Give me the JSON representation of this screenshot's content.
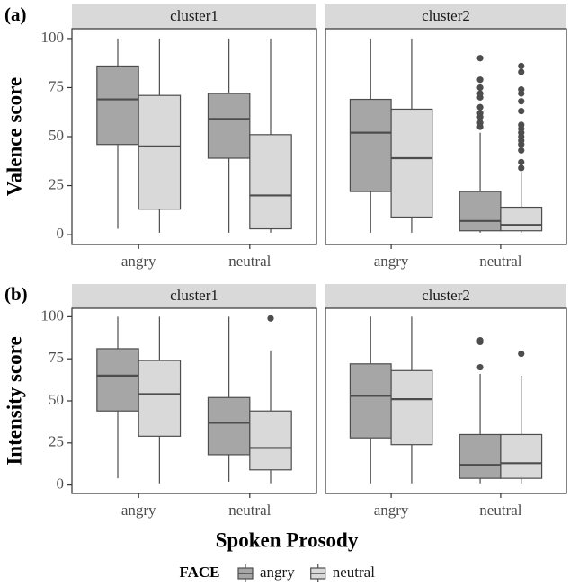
{
  "chart_data": [
    {
      "type": "box",
      "panel_label": "(a)",
      "y_label": "Valence score",
      "facet": "cluster1",
      "categories": [
        "angry",
        "neutral"
      ],
      "ylim": [
        -5,
        105
      ],
      "yticks": [
        0,
        25,
        50,
        75,
        100
      ],
      "series": [
        {
          "name": "angry",
          "color": "#a6a6a6",
          "values": [
            {
              "min": 3,
              "q1": 46,
              "median": 69,
              "q3": 86,
              "max": 100,
              "outliers": []
            },
            {
              "min": 1,
              "q1": 39,
              "median": 59,
              "q3": 72,
              "max": 100,
              "outliers": []
            }
          ]
        },
        {
          "name": "neutral",
          "color": "#d9d9d9",
          "values": [
            {
              "min": 1,
              "q1": 13,
              "median": 45,
              "q3": 71,
              "max": 100,
              "outliers": []
            },
            {
              "min": 1,
              "q1": 3,
              "median": 20,
              "q3": 51,
              "max": 100,
              "outliers": []
            }
          ]
        }
      ]
    },
    {
      "type": "box",
      "facet": "cluster2",
      "categories": [
        "angry",
        "neutral"
      ],
      "ylim": [
        -5,
        105
      ],
      "series": [
        {
          "color": "#a6a6a6",
          "values": [
            {
              "min": 1,
              "q1": 22,
              "median": 52,
              "q3": 69,
              "max": 100,
              "outliers": []
            },
            {
              "min": 1,
              "q1": 2,
              "median": 7,
              "q3": 22,
              "max": 52,
              "outliers": [
                55,
                57,
                60,
                62,
                65,
                70,
                72,
                75,
                79,
                90
              ]
            }
          ]
        },
        {
          "color": "#d9d9d9",
          "values": [
            {
              "min": 1,
              "q1": 9,
              "median": 39,
              "q3": 64,
              "max": 100,
              "outliers": []
            },
            {
              "min": 1,
              "q1": 2,
              "median": 5,
              "q3": 14,
              "max": 32,
              "outliers": [
                34,
                37,
                43,
                46,
                48,
                50,
                52,
                54,
                56,
                63,
                68,
                72,
                74,
                83,
                86
              ]
            }
          ]
        }
      ]
    },
    {
      "type": "box",
      "panel_label": "(b)",
      "y_label": "Intensity score",
      "facet": "cluster1",
      "categories": [
        "angry",
        "neutral"
      ],
      "ylim": [
        -5,
        105
      ],
      "yticks": [
        0,
        25,
        50,
        75,
        100
      ],
      "series": [
        {
          "color": "#a6a6a6",
          "values": [
            {
              "min": 4,
              "q1": 44,
              "median": 65,
              "q3": 81,
              "max": 100,
              "outliers": []
            },
            {
              "min": 2,
              "q1": 18,
              "median": 37,
              "q3": 52,
              "max": 100,
              "outliers": []
            }
          ]
        },
        {
          "color": "#d9d9d9",
          "values": [
            {
              "min": 1,
              "q1": 29,
              "median": 54,
              "q3": 74,
              "max": 100,
              "outliers": []
            },
            {
              "min": 1,
              "q1": 9,
              "median": 22,
              "q3": 44,
              "max": 80,
              "outliers": [
                99
              ]
            }
          ]
        }
      ]
    },
    {
      "type": "box",
      "facet": "cluster2",
      "categories": [
        "angry",
        "neutral"
      ],
      "ylim": [
        -5,
        105
      ],
      "series": [
        {
          "color": "#a6a6a6",
          "values": [
            {
              "min": 1,
              "q1": 28,
              "median": 53,
              "q3": 72,
              "max": 100,
              "outliers": []
            },
            {
              "min": 1,
              "q1": 4,
              "median": 12,
              "q3": 30,
              "max": 66,
              "outliers": [
                70,
                85,
                86
              ]
            }
          ]
        },
        {
          "color": "#d9d9d9",
          "values": [
            {
              "min": 1,
              "q1": 24,
              "median": 51,
              "q3": 68,
              "max": 100,
              "outliers": []
            },
            {
              "min": 1,
              "q1": 4,
              "median": 13,
              "q3": 30,
              "max": 65,
              "outliers": [
                78
              ]
            }
          ]
        }
      ]
    }
  ],
  "x_label": "Spoken Prosody",
  "legend_title": "FACE"
}
